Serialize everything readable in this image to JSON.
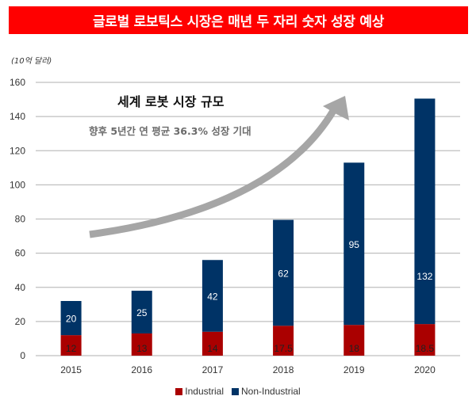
{
  "header": {
    "title": "글로벌 로보틱스 시장은 매년 두 자리 숫자 성장 예상"
  },
  "annotation": {
    "headline": "세계 로봇 시장 규모",
    "subtext": "향후 5년간 연 평균 36.3% 성장 기대",
    "arrow": "growth-arrow"
  },
  "chart_data": {
    "type": "bar",
    "stacked": true,
    "title": "글로벌 로보틱스 시장은 매년 두 자리 숫자 성장 예상",
    "ylabel": "(10억 달러)",
    "xlabel": "",
    "categories": [
      "2015",
      "2016",
      "2017",
      "2018",
      "2019",
      "2020"
    ],
    "series": [
      {
        "name": "Industrial",
        "color": "#aa0000",
        "label_color": "#222222",
        "values": [
          12,
          13,
          14,
          17.5,
          18,
          18.5
        ],
        "labels": [
          "12",
          "13",
          "14",
          "17.5",
          "18",
          "18.5"
        ]
      },
      {
        "name": "Non-Industrial",
        "color": "#003366",
        "label_color": "#ffffff",
        "values": [
          20,
          25,
          42,
          62,
          95,
          132
        ],
        "labels": [
          "20",
          "25",
          "42",
          "62",
          "95",
          "132"
        ]
      }
    ],
    "ylim": [
      0,
      160
    ],
    "yticks": [
      0,
      20,
      40,
      60,
      80,
      100,
      120,
      140,
      160
    ],
    "grid": true,
    "legend": "bottom-center"
  }
}
